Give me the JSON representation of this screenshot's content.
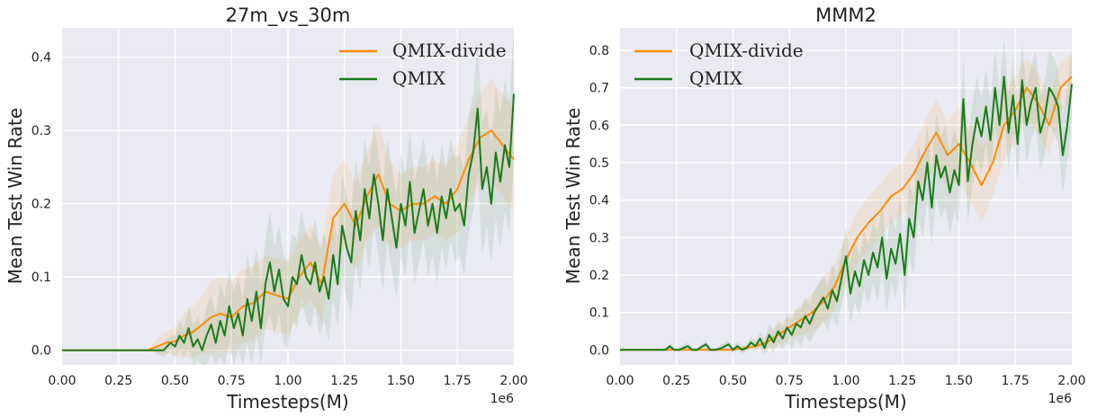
{
  "chart_data": [
    {
      "type": "line",
      "title": "27m_vs_30m",
      "xlabel": "Timesteps(M)",
      "ylabel": "Mean Test Win Rate",
      "x_scale_label": "1e6",
      "xlim": [
        0,
        2000000
      ],
      "ylim": [
        -0.02,
        0.44
      ],
      "xticks": [
        0,
        250000,
        500000,
        750000,
        1000000,
        1250000,
        1500000,
        1750000,
        2000000
      ],
      "xtick_labels": [
        "0.00",
        "0.25",
        "0.50",
        "0.75",
        "1.00",
        "1.25",
        "1.50",
        "1.75",
        "2.00"
      ],
      "yticks": [
        0.0,
        0.1,
        0.2,
        0.3,
        0.4
      ],
      "ytick_labels": [
        "0.0",
        "0.1",
        "0.2",
        "0.3",
        "0.4"
      ],
      "grid": true,
      "legend_position": "top-right",
      "series": [
        {
          "name": "QMIX-divide",
          "color": "#ff8c00",
          "x": [
            0,
            100000,
            200000,
            300000,
            380000,
            420000,
            460000,
            500000,
            540000,
            580000,
            620000,
            660000,
            700000,
            750000,
            800000,
            850000,
            900000,
            950000,
            1000000,
            1050000,
            1100000,
            1150000,
            1200000,
            1250000,
            1300000,
            1350000,
            1400000,
            1450000,
            1500000,
            1550000,
            1600000,
            1650000,
            1700000,
            1750000,
            1800000,
            1850000,
            1900000,
            1950000,
            2000000
          ],
          "y": [
            0,
            0,
            0,
            0,
            0,
            0.005,
            0.01,
            0.012,
            0.02,
            0.025,
            0.035,
            0.045,
            0.05,
            0.045,
            0.06,
            0.065,
            0.08,
            0.075,
            0.07,
            0.1,
            0.12,
            0.09,
            0.18,
            0.2,
            0.17,
            0.21,
            0.24,
            0.2,
            0.19,
            0.2,
            0.2,
            0.21,
            0.2,
            0.22,
            0.26,
            0.29,
            0.3,
            0.28,
            0.26
          ],
          "band": [
            0,
            0,
            0,
            0,
            0,
            0.01,
            0.015,
            0.02,
            0.03,
            0.035,
            0.04,
            0.05,
            0.05,
            0.05,
            0.05,
            0.05,
            0.05,
            0.05,
            0.05,
            0.05,
            0.05,
            0.05,
            0.06,
            0.06,
            0.06,
            0.06,
            0.07,
            0.06,
            0.05,
            0.05,
            0.05,
            0.05,
            0.05,
            0.06,
            0.06,
            0.06,
            0.07,
            0.07,
            0.07
          ]
        },
        {
          "name": "QMIX",
          "color": "#1a7a1a",
          "x": [
            0,
            100000,
            200000,
            300000,
            400000,
            450000,
            480000,
            500000,
            520000,
            540000,
            560000,
            580000,
            600000,
            620000,
            640000,
            660000,
            680000,
            700000,
            720000,
            740000,
            760000,
            780000,
            800000,
            820000,
            840000,
            860000,
            880000,
            900000,
            920000,
            940000,
            960000,
            980000,
            1000000,
            1020000,
            1040000,
            1060000,
            1080000,
            1100000,
            1120000,
            1140000,
            1160000,
            1180000,
            1200000,
            1220000,
            1240000,
            1260000,
            1280000,
            1300000,
            1320000,
            1340000,
            1360000,
            1380000,
            1400000,
            1420000,
            1440000,
            1460000,
            1480000,
            1500000,
            1520000,
            1540000,
            1560000,
            1580000,
            1600000,
            1620000,
            1640000,
            1660000,
            1680000,
            1700000,
            1720000,
            1740000,
            1760000,
            1780000,
            1800000,
            1820000,
            1840000,
            1860000,
            1880000,
            1900000,
            1920000,
            1940000,
            1960000,
            1980000,
            2000000
          ],
          "y": [
            0,
            0,
            0,
            0,
            0,
            0,
            0.01,
            0.005,
            0.02,
            0.01,
            0.03,
            0.005,
            0.015,
            0.0,
            0.02,
            0.035,
            0.01,
            0.04,
            0.02,
            0.06,
            0.03,
            0.05,
            0.02,
            0.07,
            0.04,
            0.08,
            0.03,
            0.09,
            0.12,
            0.08,
            0.11,
            0.07,
            0.06,
            0.1,
            0.09,
            0.13,
            0.1,
            0.09,
            0.12,
            0.08,
            0.1,
            0.07,
            0.13,
            0.09,
            0.17,
            0.14,
            0.12,
            0.19,
            0.15,
            0.22,
            0.18,
            0.24,
            0.2,
            0.15,
            0.22,
            0.18,
            0.14,
            0.2,
            0.17,
            0.23,
            0.16,
            0.19,
            0.22,
            0.17,
            0.2,
            0.16,
            0.21,
            0.18,
            0.22,
            0.19,
            0.2,
            0.17,
            0.24,
            0.27,
            0.33,
            0.22,
            0.25,
            0.2,
            0.27,
            0.23,
            0.28,
            0.25,
            0.35
          ],
          "band": [
            0,
            0,
            0,
            0,
            0,
            0.01,
            0.01,
            0.015,
            0.02,
            0.02,
            0.03,
            0.03,
            0.03,
            0.03,
            0.04,
            0.04,
            0.04,
            0.05,
            0.05,
            0.05,
            0.05,
            0.05,
            0.05,
            0.06,
            0.06,
            0.06,
            0.06,
            0.06,
            0.07,
            0.06,
            0.06,
            0.06,
            0.06,
            0.06,
            0.06,
            0.06,
            0.06,
            0.06,
            0.06,
            0.06,
            0.06,
            0.06,
            0.06,
            0.06,
            0.07,
            0.07,
            0.07,
            0.07,
            0.07,
            0.07,
            0.07,
            0.07,
            0.07,
            0.07,
            0.07,
            0.07,
            0.07,
            0.07,
            0.07,
            0.07,
            0.07,
            0.07,
            0.07,
            0.07,
            0.07,
            0.07,
            0.07,
            0.07,
            0.07,
            0.07,
            0.07,
            0.07,
            0.08,
            0.08,
            0.09,
            0.09,
            0.08,
            0.08,
            0.09,
            0.09,
            0.09,
            0.09,
            0.09
          ]
        }
      ]
    },
    {
      "type": "line",
      "title": "MMM2",
      "xlabel": "Timesteps(M)",
      "ylabel": "Mean Test Win Rate",
      "x_scale_label": "1e6",
      "xlim": [
        0,
        2000000
      ],
      "ylim": [
        -0.04,
        0.86
      ],
      "xticks": [
        0,
        250000,
        500000,
        750000,
        1000000,
        1250000,
        1500000,
        1750000,
        2000000
      ],
      "xtick_labels": [
        "0.00",
        "0.25",
        "0.50",
        "0.75",
        "1.00",
        "1.25",
        "1.50",
        "1.75",
        "2.00"
      ],
      "yticks": [
        0.0,
        0.1,
        0.2,
        0.3,
        0.4,
        0.5,
        0.6,
        0.7,
        0.8
      ],
      "ytick_labels": [
        "0.0",
        "0.1",
        "0.2",
        "0.3",
        "0.4",
        "0.5",
        "0.6",
        "0.7",
        "0.8"
      ],
      "grid": true,
      "legend_position": "top-left",
      "series": [
        {
          "name": "QMIX-divide",
          "color": "#ff8c00",
          "x": [
            0,
            200000,
            400000,
            500000,
            550000,
            600000,
            650000,
            700000,
            750000,
            800000,
            850000,
            900000,
            950000,
            1000000,
            1050000,
            1100000,
            1150000,
            1200000,
            1250000,
            1300000,
            1350000,
            1400000,
            1450000,
            1500000,
            1550000,
            1600000,
            1650000,
            1700000,
            1750000,
            1800000,
            1850000,
            1900000,
            1950000,
            2000000
          ],
          "y": [
            0,
            0,
            0,
            0,
            0.005,
            0.01,
            0.02,
            0.04,
            0.06,
            0.08,
            0.1,
            0.13,
            0.17,
            0.24,
            0.3,
            0.34,
            0.37,
            0.41,
            0.43,
            0.47,
            0.53,
            0.58,
            0.52,
            0.55,
            0.5,
            0.44,
            0.5,
            0.6,
            0.64,
            0.7,
            0.66,
            0.6,
            0.7,
            0.73
          ],
          "band": [
            0,
            0,
            0,
            0,
            0.005,
            0.01,
            0.02,
            0.03,
            0.03,
            0.04,
            0.05,
            0.06,
            0.06,
            0.06,
            0.07,
            0.07,
            0.07,
            0.07,
            0.07,
            0.08,
            0.08,
            0.09,
            0.09,
            0.1,
            0.1,
            0.1,
            0.09,
            0.09,
            0.09,
            0.08,
            0.08,
            0.08,
            0.07,
            0.06
          ]
        },
        {
          "name": "QMIX",
          "color": "#1a7a1a",
          "x": [
            0,
            150000,
            200000,
            220000,
            240000,
            260000,
            300000,
            320000,
            340000,
            380000,
            400000,
            420000,
            450000,
            480000,
            500000,
            520000,
            540000,
            560000,
            580000,
            600000,
            620000,
            640000,
            660000,
            680000,
            700000,
            720000,
            740000,
            760000,
            780000,
            800000,
            820000,
            840000,
            860000,
            880000,
            900000,
            920000,
            940000,
            960000,
            980000,
            1000000,
            1020000,
            1040000,
            1060000,
            1080000,
            1100000,
            1120000,
            1140000,
            1160000,
            1180000,
            1200000,
            1220000,
            1240000,
            1260000,
            1280000,
            1300000,
            1320000,
            1340000,
            1360000,
            1380000,
            1400000,
            1420000,
            1440000,
            1460000,
            1480000,
            1500000,
            1520000,
            1540000,
            1560000,
            1580000,
            1600000,
            1620000,
            1640000,
            1660000,
            1680000,
            1700000,
            1720000,
            1740000,
            1760000,
            1780000,
            1800000,
            1820000,
            1840000,
            1860000,
            1880000,
            1900000,
            1920000,
            1940000,
            1960000,
            1980000,
            2000000
          ],
          "y": [
            0,
            0,
            0,
            0.01,
            0,
            0,
            0.01,
            0,
            0,
            0.015,
            0,
            0,
            0.005,
            0.015,
            0,
            0.01,
            0,
            0.005,
            0.02,
            0.01,
            0.03,
            0.005,
            0.04,
            0.02,
            0.05,
            0.03,
            0.06,
            0.04,
            0.07,
            0.06,
            0.09,
            0.07,
            0.1,
            0.12,
            0.14,
            0.11,
            0.16,
            0.13,
            0.19,
            0.25,
            0.15,
            0.21,
            0.17,
            0.24,
            0.2,
            0.26,
            0.22,
            0.3,
            0.19,
            0.27,
            0.23,
            0.31,
            0.2,
            0.35,
            0.3,
            0.45,
            0.4,
            0.5,
            0.38,
            0.52,
            0.46,
            0.49,
            0.42,
            0.48,
            0.44,
            0.67,
            0.45,
            0.55,
            0.62,
            0.57,
            0.65,
            0.56,
            0.7,
            0.6,
            0.73,
            0.58,
            0.68,
            0.55,
            0.72,
            0.6,
            0.66,
            0.7,
            0.58,
            0.62,
            0.7,
            0.68,
            0.65,
            0.52,
            0.6,
            0.71
          ],
          "band": [
            0,
            0,
            0,
            0.01,
            0.005,
            0.005,
            0.01,
            0.005,
            0.005,
            0.01,
            0.005,
            0.005,
            0.01,
            0.01,
            0.01,
            0.01,
            0.01,
            0.01,
            0.015,
            0.015,
            0.02,
            0.02,
            0.03,
            0.03,
            0.03,
            0.03,
            0.04,
            0.04,
            0.04,
            0.05,
            0.05,
            0.05,
            0.06,
            0.06,
            0.06,
            0.06,
            0.07,
            0.07,
            0.07,
            0.08,
            0.08,
            0.08,
            0.08,
            0.08,
            0.08,
            0.08,
            0.09,
            0.09,
            0.09,
            0.09,
            0.09,
            0.1,
            0.1,
            0.1,
            0.1,
            0.1,
            0.1,
            0.1,
            0.1,
            0.11,
            0.11,
            0.11,
            0.11,
            0.11,
            0.11,
            0.11,
            0.11,
            0.11,
            0.11,
            0.1,
            0.1,
            0.1,
            0.1,
            0.1,
            0.1,
            0.1,
            0.1,
            0.1,
            0.1,
            0.1,
            0.1,
            0.1,
            0.1,
            0.1,
            0.1,
            0.1,
            0.1,
            0.1,
            0.1,
            0.1
          ]
        }
      ]
    }
  ]
}
